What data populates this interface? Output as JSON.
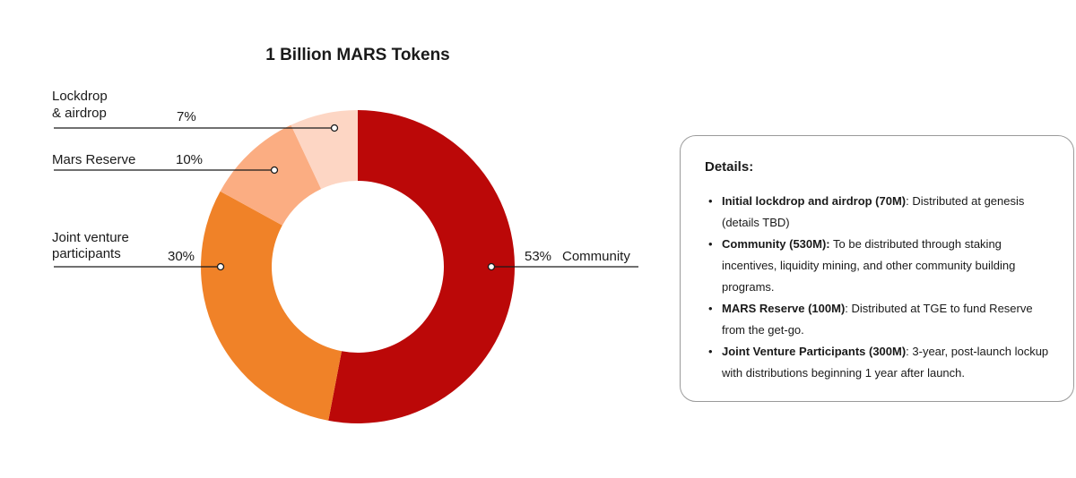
{
  "chart_data": {
    "type": "pie",
    "title": "1 Billion MARS Tokens",
    "donut": true,
    "slices": [
      {
        "label": "Community",
        "value": 53,
        "pct_label": "53%",
        "color": "#bb0808"
      },
      {
        "label": "Joint venture participants",
        "value": 30,
        "pct_label": "30%",
        "color": "#f08228"
      },
      {
        "label": "Mars Reserve",
        "value": 10,
        "pct_label": "10%",
        "color": "#fbad82"
      },
      {
        "label": "Lockdrop & airdrop",
        "value": 7,
        "pct_label": "7%",
        "color": "#fdd6c4"
      }
    ]
  },
  "labels": {
    "lockdrop_line1": "Lockdrop",
    "lockdrop_line2": "& airdrop",
    "reserve": "Mars Reserve",
    "jv_line1": "Joint venture",
    "jv_line2": "participants",
    "community": "Community"
  },
  "details": {
    "heading": "Details:",
    "items": [
      {
        "bold": "Initial lockdrop and airdrop (70M)",
        "text": ": Distributed at genesis (details TBD)"
      },
      {
        "bold": "Community (530M):",
        "text": " To be distributed through staking incentives, liquidity mining, and other community building programs."
      },
      {
        "bold": "MARS Reserve (100M)",
        "text": ": Distributed at TGE to fund Reserve from the get-go."
      },
      {
        "bold": "Joint Venture Participants (300M)",
        "text": ": 3-year, post-launch lockup with distributions beginning 1 year after launch."
      }
    ]
  }
}
